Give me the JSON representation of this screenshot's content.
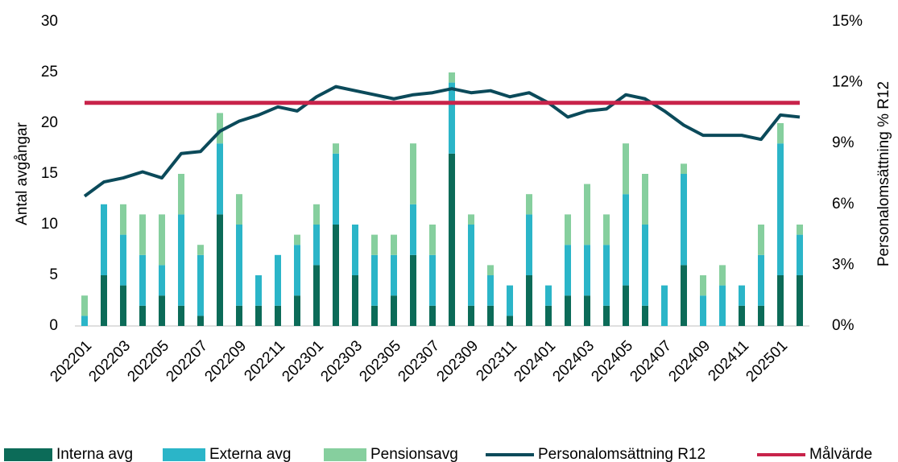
{
  "chart_data": {
    "type": "bar",
    "stacked": true,
    "ylabel": "Antal avgångar",
    "y2label": "Personalomsättning % R12",
    "categories": [
      "202201",
      null,
      "202203",
      null,
      "202205",
      null,
      "202207",
      null,
      "202209",
      null,
      "202211",
      null,
      "202301",
      null,
      "202303",
      null,
      "202305",
      null,
      "202307",
      null,
      "202309",
      null,
      "202311",
      null,
      "202401",
      null,
      "202403",
      null,
      "202405",
      null,
      "202407",
      null,
      "202409",
      null,
      "202411",
      null,
      "202501",
      null
    ],
    "series": [
      {
        "name": "Interna avg",
        "type": "bar",
        "color": "#0c6b58",
        "values": [
          0,
          5,
          4,
          2,
          3,
          2,
          1,
          11,
          2,
          2,
          2,
          3,
          6,
          10,
          5,
          2,
          3,
          7,
          2,
          17,
          2,
          2,
          1,
          5,
          2,
          3,
          3,
          2,
          4,
          2,
          0,
          6,
          0,
          0,
          2,
          2,
          5,
          5
        ]
      },
      {
        "name": "Externa avg",
        "type": "bar",
        "color": "#2bb5c8",
        "values": [
          1,
          7,
          5,
          5,
          3,
          9,
          6,
          7,
          8,
          3,
          5,
          5,
          4,
          7,
          5,
          5,
          4,
          5,
          5,
          7,
          8,
          3,
          3,
          6,
          2,
          5,
          5,
          6,
          9,
          8,
          4,
          9,
          3,
          4,
          2,
          5,
          13,
          4
        ]
      },
      {
        "name": "Pensionsavg",
        "type": "bar",
        "color": "#86cf9e",
        "values": [
          2,
          0,
          3,
          4,
          5,
          4,
          1,
          3,
          3,
          0,
          0,
          1,
          2,
          1,
          0,
          2,
          2,
          6,
          3,
          1,
          1,
          1,
          0,
          2,
          0,
          3,
          6,
          3,
          5,
          5,
          0,
          1,
          2,
          2,
          0,
          3,
          2,
          1
        ]
      },
      {
        "name": "Personalomsättning R12",
        "type": "line",
        "axis": "y2",
        "color": "#0b4a5a",
        "values": [
          6.4,
          7.1,
          7.3,
          7.6,
          7.3,
          8.5,
          8.6,
          9.6,
          10.1,
          10.4,
          10.8,
          10.6,
          11.3,
          11.8,
          11.6,
          11.4,
          11.2,
          11.4,
          11.5,
          11.7,
          11.5,
          11.6,
          11.3,
          11.5,
          11.0,
          10.3,
          10.6,
          10.7,
          11.4,
          11.2,
          10.6,
          9.9,
          9.4,
          9.4,
          9.4,
          9.2,
          10.4,
          10.3
        ]
      },
      {
        "name": "Målvärde",
        "type": "line",
        "axis": "y2",
        "color": "#c8234a",
        "values": [
          11,
          11,
          11,
          11,
          11,
          11,
          11,
          11,
          11,
          11,
          11,
          11,
          11,
          11,
          11,
          11,
          11,
          11,
          11,
          11,
          11,
          11,
          11,
          11,
          11,
          11,
          11,
          11,
          11,
          11,
          11,
          11,
          11,
          11,
          11,
          11,
          11,
          11
        ]
      }
    ],
    "ylim": [
      0,
      30
    ],
    "yticks": [
      0,
      5,
      10,
      15,
      20,
      25,
      30
    ],
    "y2lim": [
      0,
      15
    ],
    "y2ticks": [
      {
        "value": 0,
        "label": "0%"
      },
      {
        "value": 3,
        "label": "3%"
      },
      {
        "value": 6,
        "label": "6%"
      },
      {
        "value": 9,
        "label": "9%"
      },
      {
        "value": 12,
        "label": "12%"
      },
      {
        "value": 15,
        "label": "15%"
      }
    ],
    "grid": true,
    "legend": "bottom"
  }
}
